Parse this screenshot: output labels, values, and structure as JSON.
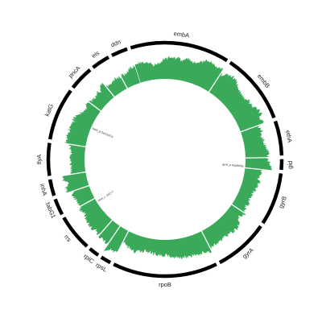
{
  "colors": {
    "background": "#ffffff",
    "gene_bar": "#000000",
    "coverage": "#3aa95a",
    "separator": "#ffffff",
    "text": "#222222"
  },
  "genes": [
    {
      "name": "embA",
      "start": 342,
      "end": 33
    },
    {
      "name": "embB",
      "start": 33,
      "end": 70
    },
    {
      "name": "ethA",
      "start": 70,
      "end": 89
    },
    {
      "name": "gid",
      "start": 89,
      "end": 96
    },
    {
      "name": "gyrB",
      "start": 96,
      "end": 124
    },
    {
      "name": "gyrA",
      "start": 124,
      "end": 153
    },
    {
      "name": "rpoB",
      "start": 153,
      "end": 207
    },
    {
      "name": "rpsL",
      "start": 207,
      "end": 214
    },
    {
      "name": "rplC",
      "start": 214,
      "end": 221
    },
    {
      "name": "rrs",
      "start": 221,
      "end": 241
    },
    {
      "name": "fabG1",
      "start": 241,
      "end": 251
    },
    {
      "name": "inhA",
      "start": 251,
      "end": 261
    },
    {
      "name": "tlyA",
      "start": 261,
      "end": 279
    },
    {
      "name": "katG",
      "start": 279,
      "end": 307
    },
    {
      "name": "pncA",
      "start": 307,
      "end": 321
    },
    {
      "name": "eis",
      "start": 321,
      "end": 332
    },
    {
      "name": "ddn",
      "start": 332,
      "end": 342
    }
  ],
  "mutations": [
    {
      "label": "katG_p.Ser315Thr",
      "angle": 293
    },
    {
      "label": "gyrA_p.Asp94Gly",
      "angle": 95
    },
    {
      "label": "inhA_c.-15C>T",
      "angle": 238
    }
  ]
}
